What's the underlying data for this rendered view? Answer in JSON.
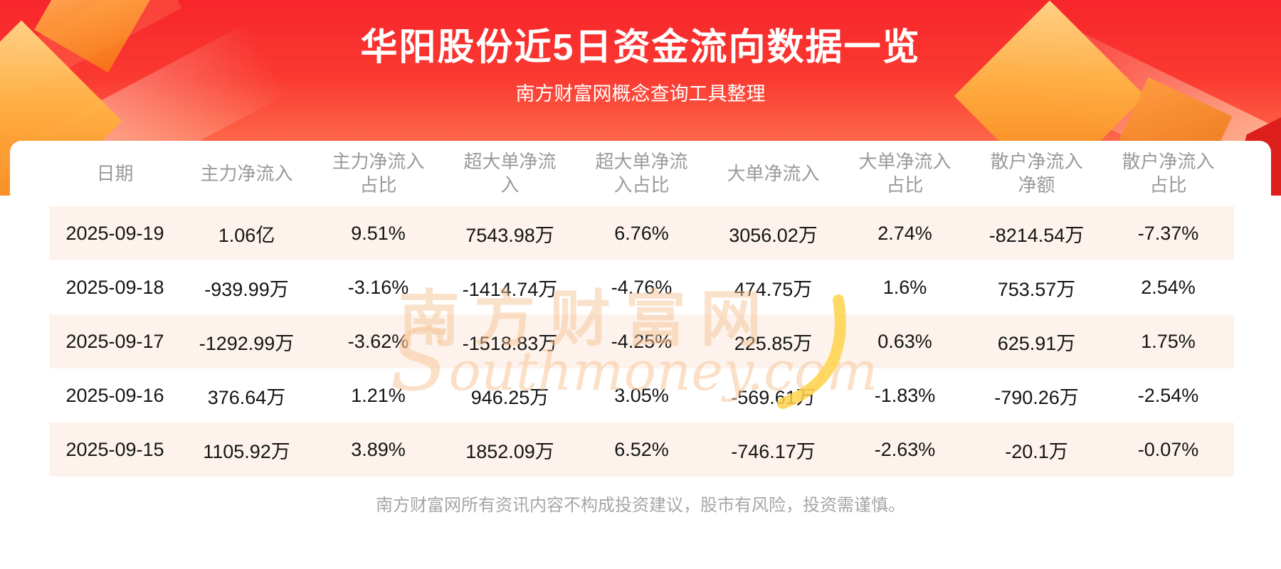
{
  "header": {
    "title": "华阳股份近5日资金流向数据一览",
    "subtitle": "南方财富网概念查询工具整理"
  },
  "chart_data": {
    "type": "table",
    "title": "华阳股份近5日资金流向数据一览",
    "columns": [
      "日期",
      "主力净流入",
      "主力净流入占比",
      "超大单净流入",
      "超大单净流入占比",
      "大单净流入",
      "大单净流入占比",
      "散户净流入净额",
      "散户净流入占比"
    ],
    "rows": [
      [
        "2025-09-19",
        "1.06亿",
        "9.51%",
        "7543.98万",
        "6.76%",
        "3056.02万",
        "2.74%",
        "-8214.54万",
        "-7.37%"
      ],
      [
        "2025-09-18",
        "-939.99万",
        "-3.16%",
        "-1414.74万",
        "-4.76%",
        "474.75万",
        "1.6%",
        "753.57万",
        "2.54%"
      ],
      [
        "2025-09-17",
        "-1292.99万",
        "-3.62%",
        "-1518.83万",
        "-4.25%",
        "225.85万",
        "0.63%",
        "625.91万",
        "1.75%"
      ],
      [
        "2025-09-16",
        "376.64万",
        "1.21%",
        "946.25万",
        "3.05%",
        "-569.61万",
        "-1.83%",
        "-790.26万",
        "-2.54%"
      ],
      [
        "2025-09-15",
        "1105.92万",
        "3.89%",
        "1852.09万",
        "6.52%",
        "-746.17万",
        "-2.63%",
        "-20.1万",
        "-0.07%"
      ]
    ]
  },
  "watermark": {
    "cn": "南方财富网",
    "en": "Southmoney.com"
  },
  "footer": {
    "disclaimer": "南方财富网所有资讯内容不构成投资建议，股市有风险，投资需谨慎。"
  },
  "colors": {
    "banner_red_top": "#f7252b",
    "banner_red_bottom": "#ffc9a4",
    "title_text": "#ffffff",
    "header_text": "#9a9a9a",
    "body_text": "#141414",
    "row_stripe": "#fdf3ec",
    "watermark": "#f6c496",
    "gold_accent": "#ffb040",
    "swoosh_yellow": "#ffd24a",
    "footer_text": "#a6a6a6"
  }
}
